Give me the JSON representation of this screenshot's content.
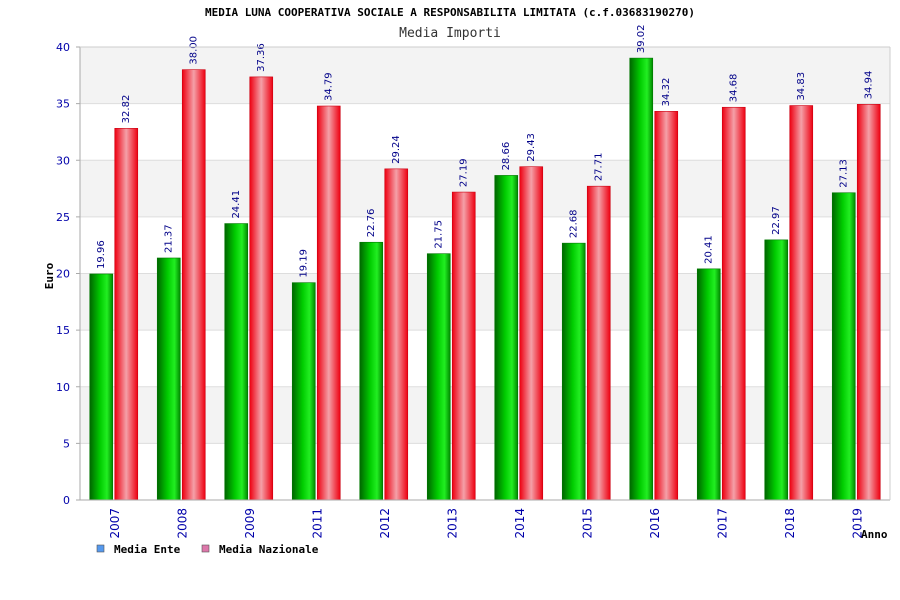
{
  "chart_data": {
    "type": "bar",
    "title": "MEDIA LUNA COOPERATIVA SOCIALE A RESPONSABILITA LIMITATA (c.f.03683190270)",
    "subtitle": "Media Importi",
    "xlabel": "Anno",
    "ylabel": "Euro",
    "ylim": [
      0,
      40
    ],
    "yticks": [
      0,
      5,
      10,
      15,
      20,
      25,
      30,
      35,
      40
    ],
    "grid": true,
    "legend_position": "bottom-left",
    "categories": [
      "2007",
      "2008",
      "2009",
      "2011",
      "2012",
      "2013",
      "2014",
      "2015",
      "2016",
      "2017",
      "2018",
      "2019"
    ],
    "series": [
      {
        "name": "Media Ente",
        "color": "#00aa00",
        "legend_color": "#5599ee",
        "values": [
          19.96,
          21.37,
          24.41,
          19.19,
          22.76,
          21.75,
          28.66,
          22.68,
          39.02,
          20.41,
          22.97,
          27.13
        ],
        "labels": [
          "19.96",
          "21.37",
          "24.41",
          "19.19",
          "22.76",
          "21.75",
          "28.66",
          "22.68",
          "39.02",
          "20.41",
          "22.97",
          "27.13"
        ]
      },
      {
        "name": "Media Nazionale",
        "color": "#ee1122",
        "legend_color": "#dd77aa",
        "values": [
          32.82,
          38.0,
          37.36,
          34.79,
          29.24,
          27.19,
          29.43,
          27.71,
          34.32,
          34.68,
          34.83,
          34.94
        ],
        "labels": [
          "32.82",
          "38.00",
          "37.36",
          "34.79",
          "29.24",
          "27.19",
          "29.43",
          "27.71",
          "34.32",
          "34.68",
          "34.83",
          "34.94"
        ]
      }
    ]
  }
}
